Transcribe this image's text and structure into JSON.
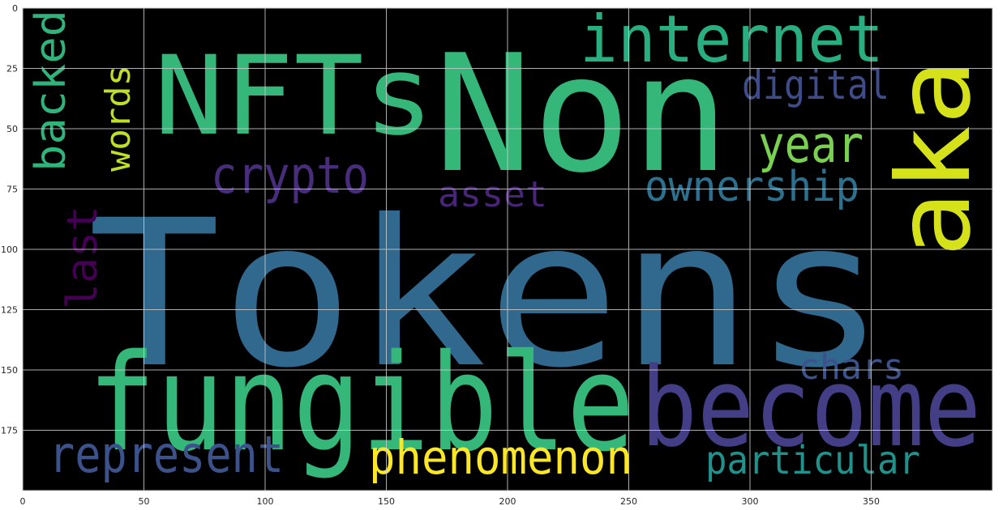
{
  "plot": {
    "xlim": [
      0,
      400
    ],
    "ylim": [
      200,
      0
    ],
    "xticks": [
      "0",
      "50",
      "100",
      "150",
      "200",
      "250",
      "300",
      "350"
    ],
    "yticks": [
      "0",
      "25",
      "50",
      "75",
      "100",
      "125",
      "150",
      "175"
    ],
    "grid": true,
    "background": "#000000"
  },
  "words": [
    {
      "text": "Tokens",
      "color": "#31688e",
      "rotated": false
    },
    {
      "text": "Non",
      "color": "#35b779",
      "rotated": false
    },
    {
      "text": "NFTs",
      "color": "#35b779",
      "rotated": false
    },
    {
      "text": "fungible",
      "color": "#35b779",
      "rotated": false
    },
    {
      "text": "become",
      "color": "#433e85",
      "rotated": false
    },
    {
      "text": "aka",
      "color": "#d5e21a",
      "rotated": true
    },
    {
      "text": "internet",
      "color": "#29af7f",
      "rotated": false
    },
    {
      "text": "digital",
      "color": "#3e4c8a",
      "rotated": false
    },
    {
      "text": "year",
      "color": "#7ad151",
      "rotated": false
    },
    {
      "text": "ownership",
      "color": "#2d708e",
      "rotated": false
    },
    {
      "text": "crypto",
      "color": "#472d7b",
      "rotated": false
    },
    {
      "text": "asset",
      "color": "#482576",
      "rotated": false
    },
    {
      "text": "backed",
      "color": "#2fb47c",
      "rotated": true
    },
    {
      "text": "words",
      "color": "#bddf26",
      "rotated": true
    },
    {
      "text": "last",
      "color": "#440154",
      "rotated": true
    },
    {
      "text": "chars",
      "color": "#3b528b",
      "rotated": false
    },
    {
      "text": "represent",
      "color": "#3b528b",
      "rotated": false
    },
    {
      "text": "phenomenon",
      "color": "#fde725",
      "rotated": false
    },
    {
      "text": "particular",
      "color": "#21918c",
      "rotated": false
    }
  ]
}
